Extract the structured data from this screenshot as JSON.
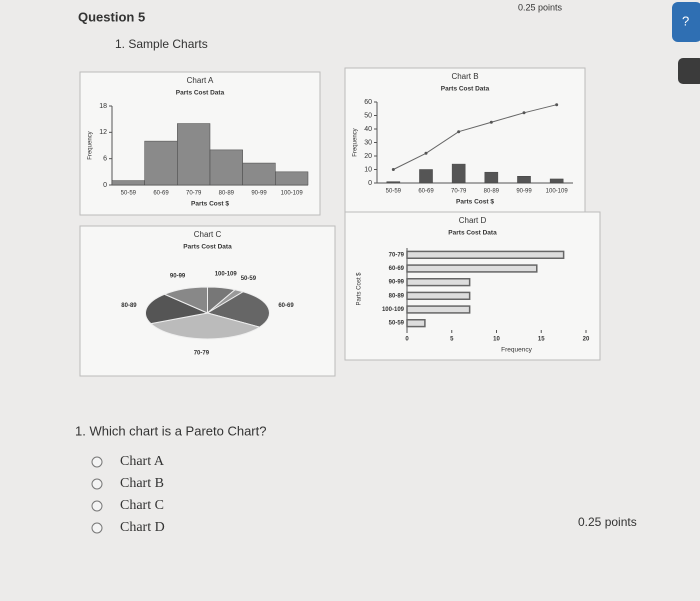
{
  "header": {
    "question": "Question 5",
    "points": "0.25 points"
  },
  "section_title": "1. Sample Charts",
  "chart_data": [
    {
      "type": "bar",
      "title": "Chart A",
      "subtitle": "Parts Cost Data",
      "x_label": "Parts Cost $",
      "y_label": "Frequency",
      "categories": [
        "50-59",
        "60-69",
        "70-79",
        "80-89",
        "90-99",
        "100-109"
      ],
      "values": [
        1,
        10,
        14,
        8,
        5,
        3
      ],
      "color": "#8a8a8a",
      "ylim": [
        0,
        18
      ],
      "yticks": [
        0,
        6,
        12,
        18
      ]
    },
    {
      "type": "pareto",
      "title": "Chart B",
      "subtitle": "Parts Cost Data",
      "x_label": "Parts Cost $",
      "y_label": "Frequency",
      "categories": [
        "50-59",
        "60-69",
        "70-79",
        "80-89",
        "90-99",
        "100-109"
      ],
      "values": [
        1,
        10,
        14,
        8,
        5,
        3
      ],
      "line_values": [
        10,
        22,
        38,
        45,
        52,
        58
      ],
      "color": "#555555",
      "ylim": [
        0,
        60
      ],
      "yticks": [
        0,
        10,
        20,
        30,
        40,
        50,
        60
      ]
    },
    {
      "type": "pie",
      "title": "Chart C",
      "subtitle": "Parts Cost Data",
      "categories": [
        "100-109",
        "50-59",
        "60-69",
        "70-79",
        "80-89",
        "90-99"
      ],
      "values": [
        3,
        1,
        10,
        14,
        8,
        5
      ],
      "color": "#555555"
    },
    {
      "type": "barh",
      "title": "Chart D",
      "subtitle": "Parts Cost Data",
      "x_label": "Frequency",
      "y_label": "Parts Cost $",
      "categories": [
        "70-79",
        "60-69",
        "90-99",
        "80-89",
        "100-109",
        "50-59"
      ],
      "values": [
        17.5,
        14.5,
        7,
        7,
        7,
        2
      ],
      "color": "#666666",
      "xlim": [
        0,
        20
      ],
      "xticks": [
        0,
        5,
        10,
        15,
        20
      ]
    }
  ],
  "question": "1. Which chart is a Pareto Chart?",
  "options": [
    "Chart A",
    "Chart B",
    "Chart C",
    "Chart D"
  ],
  "footer_points": "0.25 points"
}
